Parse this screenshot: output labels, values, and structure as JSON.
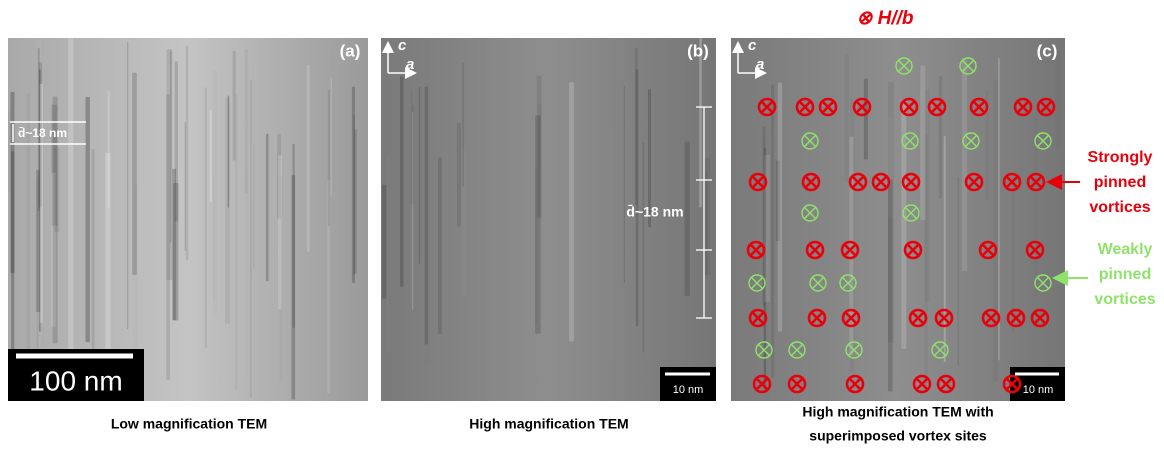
{
  "title": "⊗ H//b",
  "panels": [
    {
      "label": "(a)",
      "caption": "Low magnification TEM",
      "scale_bar": "100 nm",
      "spacing": "d̄~18 nm"
    },
    {
      "label": "(b)",
      "caption": "High magnification TEM",
      "scale_bar": "10 nm",
      "spacing": "d̄~18 nm",
      "axis_up": "c",
      "axis_right": "a"
    },
    {
      "label": "(c)",
      "caption_lines": [
        "High magnification TEM with",
        "superimposed vortex sites"
      ],
      "scale_bar": "10 nm",
      "axis_up": "c",
      "axis_right": "a"
    }
  ],
  "legend": {
    "strong": [
      "Strongly",
      "pinned",
      "vortices"
    ],
    "weak": [
      "Weakly",
      "pinned",
      "vortices"
    ]
  }
}
